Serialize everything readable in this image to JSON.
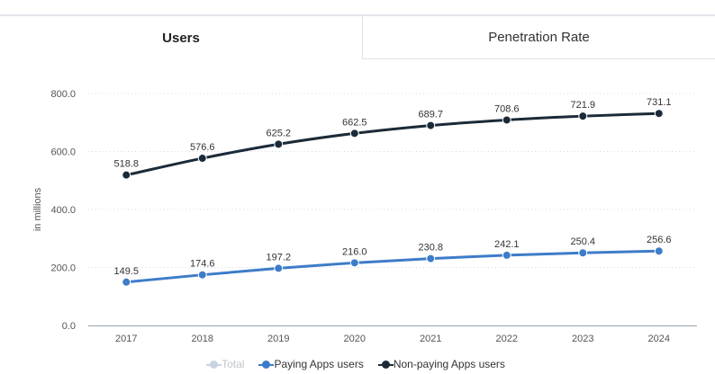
{
  "tabs": [
    {
      "label": "Users",
      "active": true
    },
    {
      "label": "Penetration Rate",
      "active": false
    }
  ],
  "legend": [
    {
      "label": "Total",
      "color": "#c8d4e0",
      "muted": true
    },
    {
      "label": "Paying Apps users",
      "color": "#3d7cc9",
      "muted": false
    },
    {
      "label": "Non-paying Apps users",
      "color": "#1b2a38",
      "muted": false
    }
  ],
  "colors": {
    "grid": "#d6dbe0",
    "axis": "#9aa5b1",
    "text": "#555555",
    "label": "#333333"
  },
  "chart_data": {
    "type": "line",
    "title": "",
    "xlabel": "",
    "ylabel": "in millions",
    "x": [
      "2017",
      "2018",
      "2019",
      "2020",
      "2021",
      "2022",
      "2023",
      "2024"
    ],
    "ylim": [
      0,
      800
    ],
    "yticks": [
      "0.0",
      "200.0",
      "400.0",
      "600.0",
      "800.0"
    ],
    "grid": true,
    "legend_position": "bottom",
    "series": [
      {
        "name": "Non-paying Apps users",
        "color": "#1b2a38",
        "values": [
          518.8,
          576.6,
          625.2,
          662.5,
          689.7,
          708.6,
          721.9,
          731.1
        ],
        "labels": [
          "518.8",
          "576.6",
          "625.2",
          "662.5",
          "689.7",
          "708.6",
          "721.9",
          "731.1"
        ]
      },
      {
        "name": "Paying Apps users",
        "color": "#3d7cc9",
        "values": [
          149.5,
          174.6,
          197.2,
          216.0,
          230.8,
          242.1,
          250.4,
          256.6
        ],
        "labels": [
          "149.5",
          "174.6",
          "197.2",
          "216.0",
          "230.8",
          "242.1",
          "250.4",
          "256.6"
        ]
      }
    ]
  }
}
